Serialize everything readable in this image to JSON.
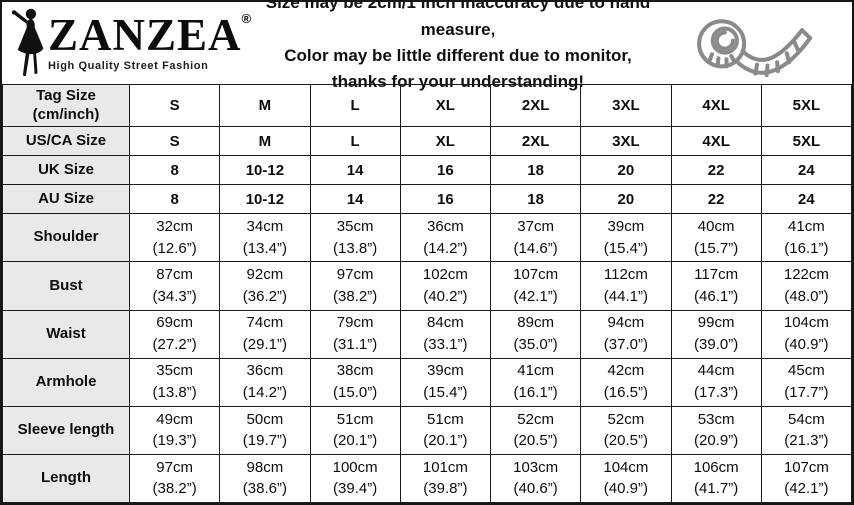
{
  "brand": {
    "name": "ZANZEA",
    "registered": "®",
    "tagline": "High Quality Street Fashion"
  },
  "notice": {
    "line1": "Size may be 2cm/1 inch inaccuracy due to hand measure,",
    "line2": "Color may be little different due to monitor,",
    "line3": "thanks for your understanding!"
  },
  "icons": {
    "logo_figure": "woman-silhouette-icon",
    "tape": "tape-measure-icon"
  },
  "colors": {
    "label_cell_bg": "#e9e9e9",
    "border": "#1b1b1b",
    "text": "#0d0d0d",
    "tape_icon": "#8a8a8a"
  },
  "table": {
    "size_rows": [
      {
        "key": "tag-size",
        "label_lines": [
          "Tag Size",
          "(cm/inch)"
        ],
        "values": [
          "S",
          "M",
          "L",
          "XL",
          "2XL",
          "3XL",
          "4XL",
          "5XL"
        ]
      },
      {
        "key": "us-ca-size",
        "label_lines": [
          "US/CA Size"
        ],
        "values": [
          "S",
          "M",
          "L",
          "XL",
          "2XL",
          "3XL",
          "4XL",
          "5XL"
        ]
      },
      {
        "key": "uk-size",
        "label_lines": [
          "UK Size"
        ],
        "values": [
          "8",
          "10-12",
          "14",
          "16",
          "18",
          "20",
          "22",
          "24"
        ]
      },
      {
        "key": "au-size",
        "label_lines": [
          "AU Size"
        ],
        "values": [
          "8",
          "10-12",
          "14",
          "16",
          "18",
          "20",
          "22",
          "24"
        ]
      }
    ],
    "measurement_rows": [
      {
        "key": "shoulder",
        "label": "Shoulder",
        "values": [
          [
            "32cm",
            "(12.6”)"
          ],
          [
            "34cm",
            "(13.4”)"
          ],
          [
            "35cm",
            "(13.8”)"
          ],
          [
            "36cm",
            "(14.2”)"
          ],
          [
            "37cm",
            "(14.6”)"
          ],
          [
            "39cm",
            "(15.4”)"
          ],
          [
            "40cm",
            "(15.7”)"
          ],
          [
            "41cm",
            "(16.1”)"
          ]
        ]
      },
      {
        "key": "bust",
        "label": "Bust",
        "values": [
          [
            "87cm",
            "(34.3”)"
          ],
          [
            "92cm",
            "(36.2”)"
          ],
          [
            "97cm",
            "(38.2”)"
          ],
          [
            "102cm",
            "(40.2”)"
          ],
          [
            "107cm",
            "(42.1”)"
          ],
          [
            "112cm",
            "(44.1”)"
          ],
          [
            "117cm",
            "(46.1”)"
          ],
          [
            "122cm",
            "(48.0”)"
          ]
        ]
      },
      {
        "key": "waist",
        "label": "Waist",
        "values": [
          [
            "69cm",
            "(27.2”)"
          ],
          [
            "74cm",
            "(29.1”)"
          ],
          [
            "79cm",
            "(31.1”)"
          ],
          [
            "84cm",
            "(33.1”)"
          ],
          [
            "89cm",
            "(35.0”)"
          ],
          [
            "94cm",
            "(37.0”)"
          ],
          [
            "99cm",
            "(39.0”)"
          ],
          [
            "104cm",
            "(40.9”)"
          ]
        ]
      },
      {
        "key": "armhole",
        "label": "Armhole",
        "values": [
          [
            "35cm",
            "(13.8”)"
          ],
          [
            "36cm",
            "(14.2”)"
          ],
          [
            "38cm",
            "(15.0”)"
          ],
          [
            "39cm",
            "(15.4”)"
          ],
          [
            "41cm",
            "(16.1”)"
          ],
          [
            "42cm",
            "(16.5”)"
          ],
          [
            "44cm",
            "(17.3”)"
          ],
          [
            "45cm",
            "(17.7”)"
          ]
        ]
      },
      {
        "key": "sleeve-length",
        "label": "Sleeve length",
        "values": [
          [
            "49cm",
            "(19.3”)"
          ],
          [
            "50cm",
            "(19.7”)"
          ],
          [
            "51cm",
            "(20.1”)"
          ],
          [
            "51cm",
            "(20.1”)"
          ],
          [
            "52cm",
            "(20.5”)"
          ],
          [
            "52cm",
            "(20.5”)"
          ],
          [
            "53cm",
            "(20.9”)"
          ],
          [
            "54cm",
            "(21.3”)"
          ]
        ]
      },
      {
        "key": "length",
        "label": "Length",
        "values": [
          [
            "97cm",
            "(38.2”)"
          ],
          [
            "98cm",
            "(38.6”)"
          ],
          [
            "100cm",
            "(39.4”)"
          ],
          [
            "101cm",
            "(39.8”)"
          ],
          [
            "103cm",
            "(40.6”)"
          ],
          [
            "104cm",
            "(40.9”)"
          ],
          [
            "106cm",
            "(41.7”)"
          ],
          [
            "107cm",
            "(42.1”)"
          ]
        ]
      }
    ]
  }
}
